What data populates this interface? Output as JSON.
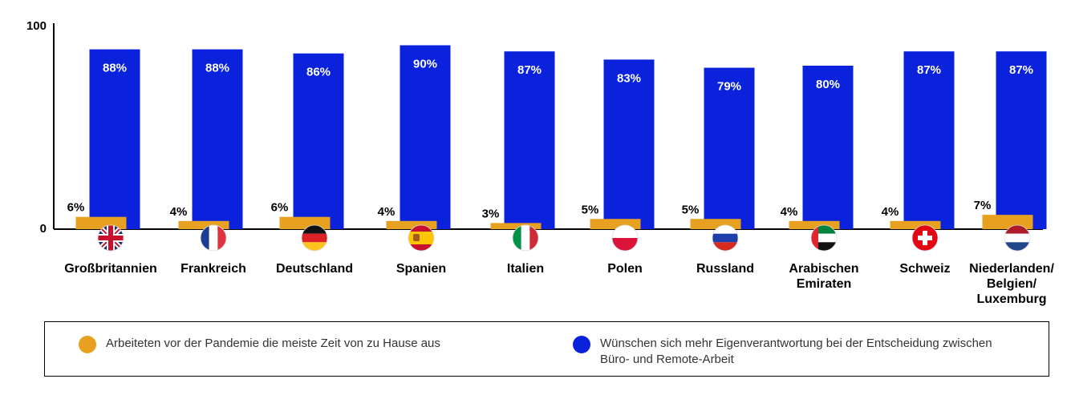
{
  "chart_data": {
    "type": "bar",
    "y_axis": {
      "ticks": [
        0,
        100
      ],
      "ylim": [
        0,
        100
      ]
    },
    "categories": [
      {
        "label": "Großbritannien",
        "flag": "united-kingdom-flag"
      },
      {
        "label": "Frankreich",
        "flag": "france-flag"
      },
      {
        "label": "Deutschland",
        "flag": "germany-flag"
      },
      {
        "label": "Spanien",
        "flag": "spain-flag"
      },
      {
        "label": "Italien",
        "flag": "italy-flag"
      },
      {
        "label": "Polen",
        "flag": "poland-flag"
      },
      {
        "label": "Russland",
        "flag": "russia-flag"
      },
      {
        "label": "Arabischen Emiraten",
        "flag": "uae-flag"
      },
      {
        "label": "Schweiz",
        "flag": "switzerland-flag"
      },
      {
        "label": "Niederlanden/ Belgien/ Luxemburg",
        "flag": "benelux-flag"
      }
    ],
    "series": [
      {
        "name": "Arbeiteten vor der Pandemie die meiste Zeit von zu Hause aus",
        "color": "#E8A020",
        "values": [
          6,
          4,
          6,
          4,
          3,
          5,
          5,
          4,
          4,
          7
        ],
        "labels": [
          "6%",
          "4%",
          "6%",
          "4%",
          "3%",
          "5%",
          "5%",
          "4%",
          "4%",
          "7%"
        ]
      },
      {
        "name": "Wünschen sich mehr Eigenverantwortung bei der Entscheidung zwischen Büro- und Remote-Arbeit",
        "color": "#0A22DB",
        "values": [
          88,
          88,
          86,
          90,
          87,
          83,
          79,
          80,
          87,
          87
        ],
        "labels": [
          "88%",
          "88%",
          "86%",
          "90%",
          "87%",
          "83%",
          "79%",
          "80%",
          "87%",
          "87%"
        ]
      }
    ],
    "legend": {
      "position": "bottom",
      "items": [
        {
          "text": "Arbeiteten vor der Pandemie die meiste Zeit von zu Hause aus",
          "color": "#E8A020"
        },
        {
          "text": "Wünschen sich mehr Eigenverantwortung bei der Entscheidung zwischen Büro- und Remote-Arbeit",
          "color": "#0A22DB"
        }
      ]
    }
  }
}
